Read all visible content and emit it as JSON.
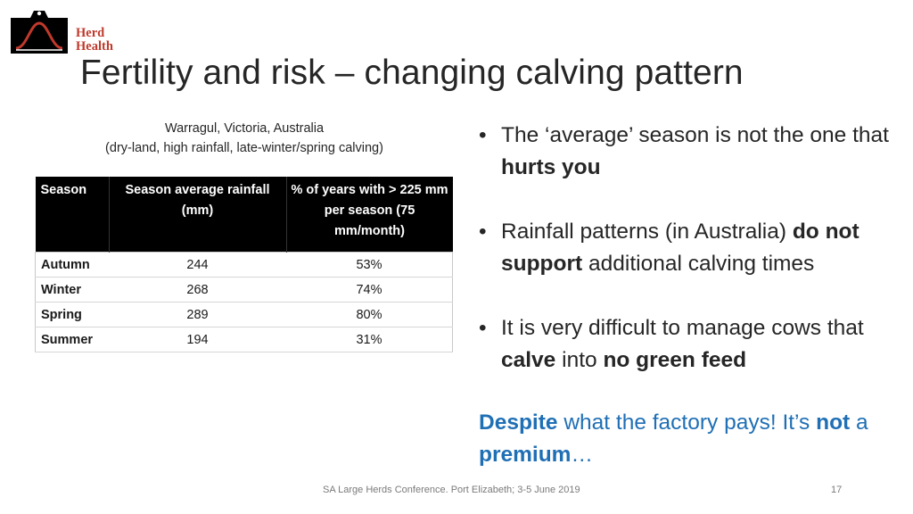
{
  "logo": {
    "line1": "Herd",
    "line2": "Health"
  },
  "title": "Fertility and risk – changing calving pattern",
  "table": {
    "caption_line1": "Warragul, Victoria, Australia",
    "caption_line2": "(dry-land, high rainfall, late-winter/spring calving)",
    "headers": [
      "Season",
      "Season average rainfall (mm)",
      "% of years with > 225 mm per season (75 mm/month)"
    ],
    "rows": [
      {
        "season": "Autumn",
        "rainfall": "244",
        "pct": "53%"
      },
      {
        "season": "Winter",
        "rainfall": "268",
        "pct": "74%"
      },
      {
        "season": "Spring",
        "rainfall": "289",
        "pct": "80%"
      },
      {
        "season": "Summer",
        "rainfall": "194",
        "pct": "31%"
      }
    ]
  },
  "bullets": {
    "b1_a": "The ‘average’ season is not the one that ",
    "b1_b": "hurts you",
    "b2_a": "Rainfall patterns (in Australia) ",
    "b2_b": "do not support",
    "b2_c": " additional calving times",
    "b3_a": "It is very difficult to manage cows that ",
    "b3_b": "calve",
    "b3_c": " into ",
    "b3_d": "no green feed"
  },
  "note": {
    "n_a": "Despite",
    "n_b": " what the factory pays! It’s ",
    "n_c": "not",
    "n_d": " a ",
    "n_e": "premium",
    "n_f": "…"
  },
  "footer": "SA Large Herds Conference.  Port Elizabeth; 3-5 June 2019",
  "page_number": "17",
  "colors": {
    "logo_red": "#c0392b",
    "note_blue": "#1f6fb5",
    "header_bg": "#000000"
  }
}
